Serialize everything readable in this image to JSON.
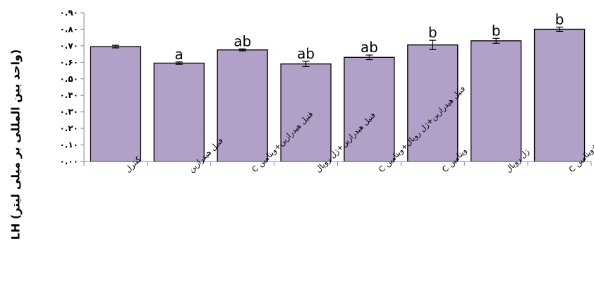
{
  "chart_data": {
    "type": "bar",
    "ylabel": "LH (واحد بین المللی بر میلی لیتر)",
    "categories": [
      "کنترل",
      "فنیل هیدرازین",
      "فنیل هیدرازین+ویتامین C",
      "فنیل هیدرازین+ژل رویال",
      "فنیل هیدرازین+ژل رویال+ویتامین C",
      "ویتامین C",
      "ژل رویال",
      "ژل رویال+ویتامین C"
    ],
    "values": [
      0.695,
      0.595,
      0.675,
      0.59,
      0.63,
      0.705,
      0.73,
      0.8
    ],
    "errors": [
      0.008,
      0.007,
      0.006,
      0.016,
      0.014,
      0.028,
      0.015,
      0.013
    ],
    "significance": [
      "",
      "a",
      "ab",
      "ab",
      "ab",
      "b",
      "b",
      "b"
    ],
    "ylim": [
      0,
      0.9
    ],
    "yticks": [
      "۰.۰۰",
      "۰.۱۰",
      "۰.۲۰",
      "۰.۳۰",
      "۰.۴۰",
      "۰.۵۰",
      "۰.۶۰",
      "۰.۷۰",
      "۰.۸۰",
      "۰.۹۰"
    ],
    "grid": false,
    "bar_color": "#b1a0c7",
    "edge_color": "#000000"
  }
}
